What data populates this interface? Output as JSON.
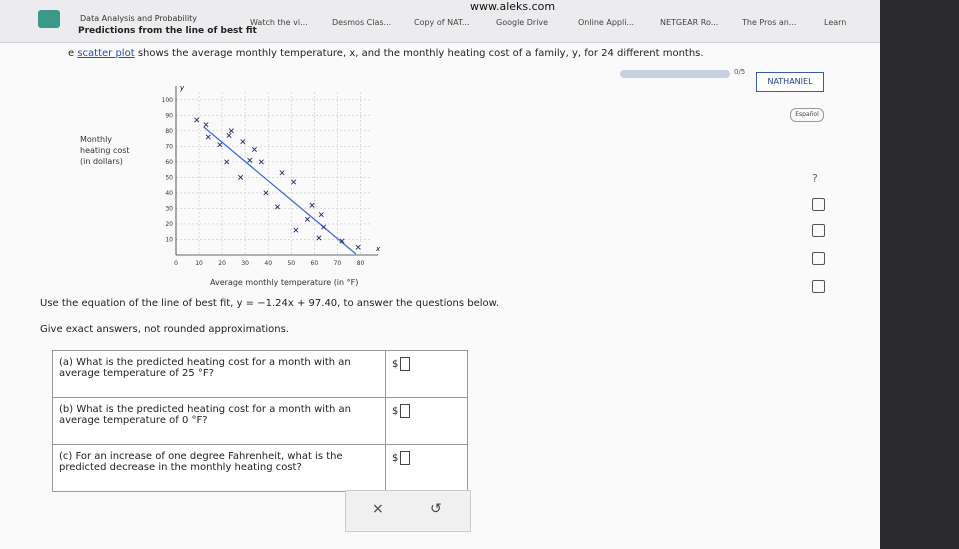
{
  "browser": {
    "url": "www.aleks.com",
    "tabs": [
      "Watch the vi...",
      "Desmos Clas...",
      "Copy of NAT...",
      "Google Drive",
      "Online Appli...",
      "NETGEAR Ro...",
      "The Pros an...",
      "Learn"
    ]
  },
  "header": {
    "topic": "Data Analysis and Probability",
    "title": "Predictions from the line of best fit",
    "progress": "0/5",
    "user": "NATHANIEL",
    "language": "Español",
    "help": "?"
  },
  "intro": {
    "before": "e",
    "link": "scatter plot",
    "after": "shows the average monthly temperature, x, and the monthly heating cost of a family, y, for 24 different months."
  },
  "chart_data": {
    "type": "scatter",
    "ylabel": "Monthly heating cost (in dollars)",
    "xlabel": "Average monthly temperature (in °F)",
    "x_axis_letter": "x",
    "y_axis_letter": "y",
    "x": [
      9,
      13,
      14,
      19,
      23,
      24,
      29,
      34,
      32,
      37,
      22,
      28,
      46,
      51,
      39,
      44,
      59,
      63,
      57,
      64,
      52,
      62,
      72,
      79
    ],
    "y": [
      87,
      84,
      76,
      71,
      77,
      80,
      73,
      68,
      61,
      60,
      60,
      50,
      53,
      47,
      40,
      31,
      32,
      26,
      23,
      18,
      16,
      11,
      9,
      5
    ],
    "color": "#2a2a6a",
    "fit_line": {
      "slope": -1.24,
      "intercept": 97.4,
      "x": [
        12,
        78
      ],
      "color": "#3d6fd8"
    },
    "xlim": [
      0,
      85
    ],
    "ylim": [
      0,
      105
    ],
    "xticks": [
      0,
      10,
      20,
      30,
      40,
      50,
      60,
      70,
      80
    ],
    "yticks": [
      10,
      20,
      30,
      40,
      50,
      60,
      70,
      80,
      90,
      100
    ],
    "grid": true
  },
  "question": {
    "instruction": "Use the equation of the line of best fit, y = −1.24x + 97.40, to answer the questions below.",
    "note": "Give exact answers, not rounded approximations.",
    "rows": [
      {
        "text": "(a) What is the predicted heating cost for a month with an average temperature of 25 °F?",
        "unit": "$"
      },
      {
        "text": "(b) What is the predicted heating cost for a month with an average temperature of 0 °F?",
        "unit": "$"
      },
      {
        "text": "(c) For an increase of one degree Fahrenheit, what is the predicted decrease in the monthly heating cost?",
        "unit": "$"
      }
    ],
    "clear": "×",
    "undo": "↺"
  }
}
